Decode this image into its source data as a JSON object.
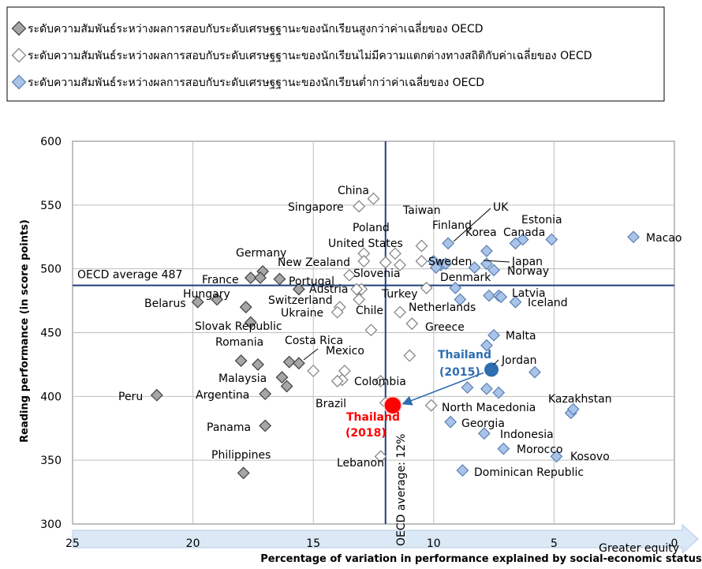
{
  "legend": [
    {
      "label": "ระดับความสัมพันธ์ระหว่างผลการสอบกับระดับเศรษฐฐานะของนักเรียนสูงกว่าค่าเฉลี่ยของ OECD",
      "fill": "#a6a6a6",
      "stroke": "#404040"
    },
    {
      "label": "ระดับความสัมพันธ์ระหว่างผลการสอบกับระดับเศรษฐฐานะของนักเรียนไม่มีความแตกต่างทางสถิติกับค่าเฉลี่ยของ OECD",
      "fill": "#ffffff",
      "stroke": "#808080"
    },
    {
      "label": "ระดับความสัมพันธ์ระหว่างผลการสอบกับระดับเศรษฐฐานะของนักเรียนต่ำกว่าค่าเฉลี่ยของ OECD",
      "fill": "#a9c4e8",
      "stroke": "#5b7fb3"
    }
  ],
  "chart_data": {
    "type": "scatter",
    "xlabel": "Percentage of variation in performance explained by social-economic status",
    "ylabel": "Reading performance (in score points)",
    "xlim": [
      25,
      0
    ],
    "ylim": [
      300,
      600
    ],
    "x_ticks": [
      25,
      20,
      15,
      10,
      5,
      0
    ],
    "y_ticks": [
      300,
      350,
      400,
      450,
      500,
      550,
      600
    ],
    "x_arrow_label": "Greater equity",
    "grid": true,
    "reference_lines": {
      "oecd_performance": {
        "value": 487,
        "label": "OECD average 487"
      },
      "oecd_variation": {
        "value": 12,
        "label": "OECD average: 12%"
      }
    },
    "series": [
      {
        "name": "above",
        "points": [
          {
            "label": "Peru",
            "x": 21.5,
            "y": 401
          },
          {
            "label": "Belarus",
            "x": 19.8,
            "y": 474
          },
          {
            "label": "Hungary",
            "x": 19.0,
            "y": 476
          },
          {
            "label": "Philippines",
            "x": 17.9,
            "y": 340
          },
          {
            "label": "Slovak Republic",
            "x": 17.6,
            "y": 458
          },
          {
            "label": "",
            "x": 17.8,
            "y": 470
          },
          {
            "label": "Romania",
            "x": 18.0,
            "y": 428
          },
          {
            "label": "France",
            "x": 17.6,
            "y": 493
          },
          {
            "label": "Germany",
            "x": 17.1,
            "y": 498
          },
          {
            "label": "",
            "x": 17.2,
            "y": 493
          },
          {
            "label": "",
            "x": 17.3,
            "y": 425
          },
          {
            "label": "Argentina",
            "x": 17.0,
            "y": 402
          },
          {
            "label": "Panama",
            "x": 17.0,
            "y": 377
          },
          {
            "label": "Portugal",
            "x": 16.4,
            "y": 492
          },
          {
            "label": "Malaysia",
            "x": 16.3,
            "y": 415
          },
          {
            "label": "",
            "x": 16.1,
            "y": 408
          },
          {
            "label": "",
            "x": 16.0,
            "y": 427
          },
          {
            "label": "",
            "x": 15.6,
            "y": 484
          },
          {
            "label": "Costa Rica",
            "x": 15.6,
            "y": 426
          }
        ]
      },
      {
        "name": "not_different",
        "points": [
          {
            "label": "China",
            "x": 12.5,
            "y": 555
          },
          {
            "label": "Singapore",
            "x": 13.1,
            "y": 549
          },
          {
            "label": "Poland",
            "x": 12.9,
            "y": 512
          },
          {
            "label": "New Zealand",
            "x": 12.9,
            "y": 506
          },
          {
            "label": "Slovenia",
            "x": 13.5,
            "y": 495
          },
          {
            "label": "Austria",
            "x": 13.0,
            "y": 484
          },
          {
            "label": "Switzerland",
            "x": 13.2,
            "y": 484
          },
          {
            "label": "",
            "x": 13.1,
            "y": 476
          },
          {
            "label": "",
            "x": 13.9,
            "y": 470
          },
          {
            "label": "Ukraine",
            "x": 14.0,
            "y": 466
          },
          {
            "label": "Chile",
            "x": 12.6,
            "y": 452
          },
          {
            "label": "Mexico",
            "x": 13.7,
            "y": 420
          },
          {
            "label": "",
            "x": 13.8,
            "y": 413
          },
          {
            "label": "",
            "x": 14.0,
            "y": 412
          },
          {
            "label": "",
            "x": 15.0,
            "y": 420
          },
          {
            "label": "United States",
            "x": 12.0,
            "y": 505
          },
          {
            "label": "",
            "x": 11.6,
            "y": 512
          },
          {
            "label": "",
            "x": 11.4,
            "y": 503
          },
          {
            "label": "Turkey",
            "x": 11.4,
            "y": 466
          },
          {
            "label": "Greece",
            "x": 10.9,
            "y": 457
          },
          {
            "label": "",
            "x": 11.0,
            "y": 432
          },
          {
            "label": "",
            "x": 10.5,
            "y": 518
          },
          {
            "label": "",
            "x": 10.5,
            "y": 506
          },
          {
            "label": "",
            "x": 10.3,
            "y": 485
          },
          {
            "label": "Colombia",
            "x": 12.2,
            "y": 412
          },
          {
            "label": "Brazil",
            "x": 12.0,
            "y": 395
          },
          {
            "label": "North Macedonia",
            "x": 10.1,
            "y": 393
          },
          {
            "label": "Lebanon",
            "x": 12.2,
            "y": 353
          }
        ]
      },
      {
        "name": "below",
        "points": [
          {
            "label": "Macao",
            "x": 1.7,
            "y": 525
          },
          {
            "label": "Estonia",
            "x": 5.1,
            "y": 523
          },
          {
            "label": "Canada",
            "x": 6.3,
            "y": 523
          },
          {
            "label": "Korea",
            "x": 6.6,
            "y": 520
          },
          {
            "label": "Finland",
            "x": 9.4,
            "y": 520
          },
          {
            "label": "Sweden",
            "x": 10.0,
            "y": 506
          },
          {
            "label": "Taiwan",
            "x": 9.7,
            "y": 503
          },
          {
            "label": "",
            "x": 9.9,
            "y": 501
          },
          {
            "label": "UK",
            "x": 9.5,
            "y": 504
          },
          {
            "label": "",
            "x": 7.8,
            "y": 514
          },
          {
            "label": "Japan",
            "x": 7.8,
            "y": 504
          },
          {
            "label": "Norway",
            "x": 7.5,
            "y": 499
          },
          {
            "label": "Denmark",
            "x": 8.3,
            "y": 501
          },
          {
            "label": "Latvia",
            "x": 7.7,
            "y": 479
          },
          {
            "label": "",
            "x": 7.3,
            "y": 479
          },
          {
            "label": "",
            "x": 7.2,
            "y": 478
          },
          {
            "label": "Iceland",
            "x": 6.6,
            "y": 474
          },
          {
            "label": "Netherlands",
            "x": 9.1,
            "y": 485
          },
          {
            "label": "",
            "x": 8.9,
            "y": 476
          },
          {
            "label": "Malta",
            "x": 7.5,
            "y": 448
          },
          {
            "label": "",
            "x": 7.8,
            "y": 440
          },
          {
            "label": "Jordan",
            "x": 5.8,
            "y": 419
          },
          {
            "label": "",
            "x": 7.3,
            "y": 403
          },
          {
            "label": "",
            "x": 7.8,
            "y": 406
          },
          {
            "label": "",
            "x": 8.6,
            "y": 407
          },
          {
            "label": "Kazakhstan",
            "x": 4.3,
            "y": 387
          },
          {
            "label": "",
            "x": 4.2,
            "y": 390
          },
          {
            "label": "Georgia",
            "x": 9.3,
            "y": 380
          },
          {
            "label": "Indonesia",
            "x": 7.9,
            "y": 371
          },
          {
            "label": "Morocco",
            "x": 7.1,
            "y": 359
          },
          {
            "label": "Kosovo",
            "x": 4.9,
            "y": 353
          },
          {
            "label": "Dominican Republic",
            "x": 8.8,
            "y": 342
          }
        ]
      },
      {
        "name": "thailand_2015",
        "label": "Thailand\n(2015)",
        "x": 7.6,
        "y": 421,
        "color": "#2e6db0"
      },
      {
        "name": "thailand_2018",
        "label": "Thailand\n(2018)",
        "x": 11.7,
        "y": 393,
        "color": "#ff0000"
      }
    ],
    "annotation_arrow": {
      "from": "thailand_2015",
      "to": "thailand_2018"
    }
  }
}
